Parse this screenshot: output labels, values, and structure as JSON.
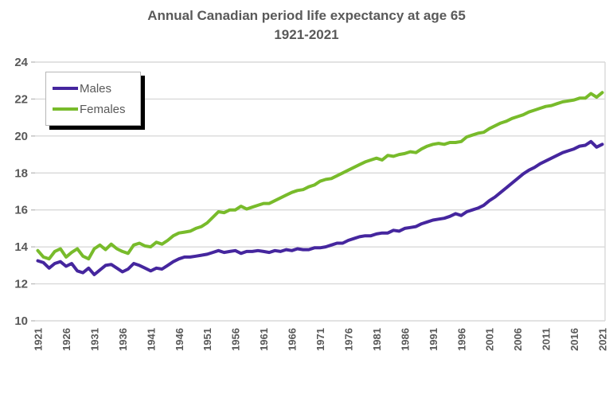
{
  "chart_data": {
    "type": "line",
    "title": "Annual Canadian period life expectancy at age 65",
    "subtitle": "1921-2021",
    "xlabel": "",
    "ylabel": "",
    "x_start": 1921,
    "x_end": 2021,
    "x_tick_labels": [
      "1921",
      "1926",
      "1931",
      "1936",
      "1941",
      "1946",
      "1951",
      "1956",
      "1961",
      "1966",
      "1971",
      "1976",
      "1981",
      "1986",
      "1991",
      "1996",
      "2001",
      "2006",
      "2011",
      "2016",
      "2021"
    ],
    "ylim": [
      10,
      24
    ],
    "y_tick_step": 2,
    "grid": "horizontal",
    "legend_position": "top-left",
    "series": [
      {
        "name": "Males",
        "color": "#45269E",
        "values": [
          13.25,
          13.15,
          12.85,
          13.1,
          13.2,
          12.95,
          13.1,
          12.7,
          12.6,
          12.85,
          12.5,
          12.75,
          13.0,
          13.05,
          12.85,
          12.65,
          12.8,
          13.1,
          13.0,
          12.85,
          12.7,
          12.85,
          12.8,
          13.0,
          13.2,
          13.35,
          13.45,
          13.45,
          13.5,
          13.55,
          13.6,
          13.7,
          13.8,
          13.7,
          13.75,
          13.8,
          13.65,
          13.75,
          13.75,
          13.8,
          13.75,
          13.7,
          13.8,
          13.75,
          13.85,
          13.8,
          13.9,
          13.85,
          13.85,
          13.95,
          13.95,
          14.0,
          14.1,
          14.2,
          14.2,
          14.35,
          14.45,
          14.55,
          14.6,
          14.6,
          14.7,
          14.75,
          14.75,
          14.9,
          14.85,
          15.0,
          15.05,
          15.1,
          15.25,
          15.35,
          15.45,
          15.5,
          15.55,
          15.65,
          15.8,
          15.7,
          15.9,
          16.0,
          16.1,
          16.25,
          16.5,
          16.7,
          16.95,
          17.2,
          17.45,
          17.7,
          17.95,
          18.15,
          18.3,
          18.5,
          18.65,
          18.8,
          18.95,
          19.1,
          19.2,
          19.3,
          19.45,
          19.5,
          19.7,
          19.4,
          19.55
        ]
      },
      {
        "name": "Females",
        "color": "#78BB2B",
        "values": [
          13.8,
          13.45,
          13.35,
          13.75,
          13.9,
          13.45,
          13.7,
          13.9,
          13.5,
          13.35,
          13.9,
          14.1,
          13.85,
          14.15,
          13.9,
          13.75,
          13.65,
          14.1,
          14.2,
          14.05,
          14.0,
          14.25,
          14.15,
          14.35,
          14.6,
          14.75,
          14.8,
          14.85,
          15.0,
          15.1,
          15.3,
          15.6,
          15.9,
          15.85,
          16.0,
          16.0,
          16.2,
          16.05,
          16.15,
          16.25,
          16.35,
          16.35,
          16.5,
          16.65,
          16.8,
          16.95,
          17.05,
          17.1,
          17.25,
          17.35,
          17.55,
          17.65,
          17.7,
          17.85,
          18.0,
          18.15,
          18.3,
          18.45,
          18.6,
          18.7,
          18.8,
          18.7,
          18.95,
          18.9,
          19.0,
          19.05,
          19.15,
          19.1,
          19.3,
          19.45,
          19.55,
          19.6,
          19.55,
          19.65,
          19.65,
          19.7,
          19.95,
          20.05,
          20.15,
          20.2,
          20.4,
          20.55,
          20.7,
          20.8,
          20.95,
          21.05,
          21.15,
          21.3,
          21.4,
          21.5,
          21.6,
          21.65,
          21.75,
          21.85,
          21.9,
          21.95,
          22.05,
          22.05,
          22.3,
          22.1,
          22.35
        ]
      }
    ],
    "style": {
      "text_color": "#595959",
      "gridline_color": "#d9d9d9",
      "tick_color": "#bfbfbf",
      "line_width": 4
    }
  }
}
